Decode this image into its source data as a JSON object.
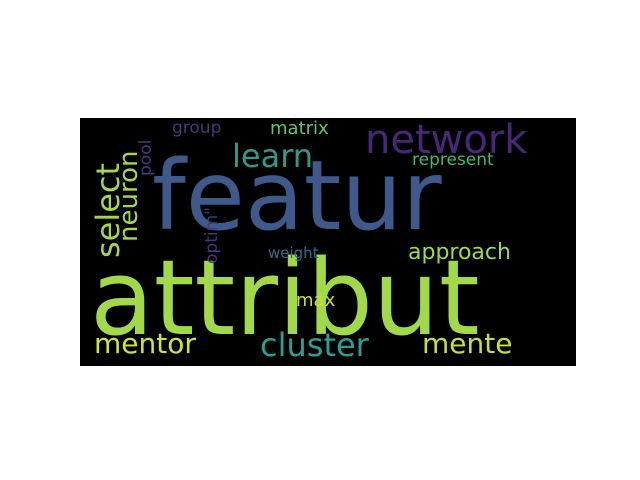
{
  "wordcloud": {
    "words": [
      {
        "text": "featur",
        "color": "#3f5a8a"
      },
      {
        "text": "attribut",
        "color": "#a2d94b"
      },
      {
        "text": "network",
        "color": "#472878"
      },
      {
        "text": "select",
        "color": "#a2d94b"
      },
      {
        "text": "neuron",
        "color": "#a2d94b"
      },
      {
        "text": "learn",
        "color": "#2f9a8a"
      },
      {
        "text": "matrix",
        "color": "#5cc86a"
      },
      {
        "text": "group",
        "color": "#433a7a"
      },
      {
        "text": "pool",
        "color": "#433a7a"
      },
      {
        "text": "represent",
        "color": "#3bbb76"
      },
      {
        "text": "optim\"",
        "color": "#433a7a"
      },
      {
        "text": "weight",
        "color": "#2f6d8f"
      },
      {
        "text": "approach",
        "color": "#a2d94b"
      },
      {
        "text": "max",
        "color": "#c8de3a"
      },
      {
        "text": "mentor",
        "color": "#d4e23a"
      },
      {
        "text": "cluster",
        "color": "#2a9f95"
      },
      {
        "text": "mente",
        "color": "#c8de3a"
      }
    ]
  }
}
